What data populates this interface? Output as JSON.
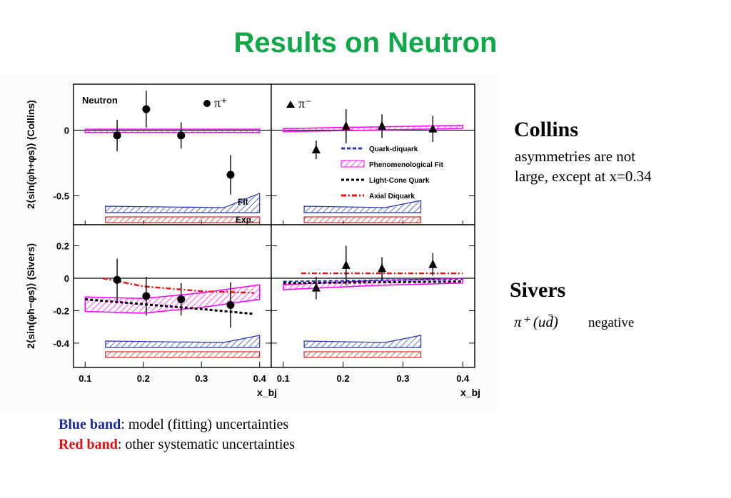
{
  "title": "Results on Neutron",
  "collins_side": {
    "heading": "Collins",
    "lines": [
      "asymmetries are not",
      "large, except at x=0.34"
    ]
  },
  "sivers_side": {
    "heading": "Sivers",
    "formula": "π⁺ (ud̄)",
    "note": "negative"
  },
  "captions": {
    "blue_label": "Blue band",
    "blue_text": ": model (fitting) uncertainties",
    "red_label": "Red band",
    "red_text": ": other systematic uncertainties"
  },
  "chart_data": {
    "type": "scatter",
    "xlabel": "x_bj",
    "xlim": [
      0.08,
      0.42
    ],
    "xticks": [
      "0.1",
      "0.2",
      "0.3",
      "0.4"
    ],
    "rows": [
      {
        "ylabel": "2⟨sin(φh+φs)⟩ (Collins)",
        "ylim": [
          -0.72,
          0.35
        ],
        "yticks": [
          0,
          -0.5
        ],
        "yticklabels": [
          "0",
          "-0.5"
        ]
      },
      {
        "ylabel": "2⟨sin(φh−φs)⟩ (Sivers)",
        "ylim": [
          -0.55,
          0.33
        ],
        "yticks": [
          0.2,
          0,
          -0.2,
          -0.4
        ],
        "yticklabels": [
          "0.2",
          "0",
          "-0.2",
          "-0.4"
        ]
      }
    ],
    "panel_labels": {
      "neutron": "Neutron",
      "pi_plus": "π⁺",
      "pi_minus": "π⁻",
      "fit": "Fit",
      "exp": "Exp."
    },
    "legend": [
      "Quark-diquark",
      "Phenomenological Fit",
      "Light-Cone Quark",
      "Axial Diquark"
    ],
    "colors": {
      "quark_diquark": "#2233cc",
      "phenomenological": "#ff00ff",
      "light_cone": "#000000",
      "axial": "#ee1111",
      "band_blue": "#2233bb",
      "band_red": "#dd2222"
    },
    "panels": [
      {
        "id": "collins-pi-plus",
        "marker": "circle",
        "points": [
          {
            "x": 0.155,
            "y": -0.04,
            "err": 0.12
          },
          {
            "x": 0.205,
            "y": 0.16,
            "err": 0.14
          },
          {
            "x": 0.265,
            "y": -0.04,
            "err": 0.1
          },
          {
            "x": 0.35,
            "y": -0.34,
            "err": 0.15
          }
        ],
        "pheno": {
          "x": [
            0.1,
            0.4
          ],
          "y": [
            -0.005,
            -0.005
          ],
          "half_width": 0.012
        }
      },
      {
        "id": "collins-pi-minus",
        "marker": "triangle",
        "points": [
          {
            "x": 0.155,
            "y": -0.15,
            "err": 0.07
          },
          {
            "x": 0.205,
            "y": 0.03,
            "err": 0.13
          },
          {
            "x": 0.265,
            "y": 0.03,
            "err": 0.09
          },
          {
            "x": 0.35,
            "y": 0.01,
            "err": 0.1
          }
        ],
        "pheno": {
          "x": [
            0.1,
            0.4
          ],
          "y": [
            0.0,
            0.025
          ],
          "half_width": 0.012
        }
      },
      {
        "id": "sivers-pi-plus",
        "marker": "circle",
        "points": [
          {
            "x": 0.155,
            "y": -0.01,
            "err": 0.13
          },
          {
            "x": 0.205,
            "y": -0.11,
            "err": 0.12
          },
          {
            "x": 0.265,
            "y": -0.13,
            "err": 0.1
          },
          {
            "x": 0.35,
            "y": -0.165,
            "err": 0.14
          }
        ],
        "pheno": {
          "x": [
            0.1,
            0.2,
            0.3,
            0.4
          ],
          "y": [
            -0.16,
            -0.17,
            -0.135,
            -0.085
          ],
          "half_width": 0.045
        },
        "light_cone": {
          "x": [
            0.1,
            0.2,
            0.3,
            0.39
          ],
          "y": [
            -0.13,
            -0.16,
            -0.19,
            -0.22
          ]
        },
        "axial": {
          "x": [
            0.13,
            0.2,
            0.3,
            0.39
          ],
          "y": [
            0.0,
            -0.05,
            -0.08,
            -0.09
          ]
        }
      },
      {
        "id": "sivers-pi-minus",
        "marker": "triangle",
        "points": [
          {
            "x": 0.155,
            "y": -0.06,
            "err": 0.07
          },
          {
            "x": 0.205,
            "y": 0.08,
            "err": 0.12
          },
          {
            "x": 0.265,
            "y": 0.06,
            "err": 0.07
          },
          {
            "x": 0.35,
            "y": 0.085,
            "err": 0.07
          }
        ],
        "pheno": {
          "x": [
            0.1,
            0.25,
            0.4
          ],
          "y": [
            -0.055,
            -0.03,
            -0.015
          ],
          "half_width": 0.015
        },
        "light_cone": {
          "x": [
            0.1,
            0.4
          ],
          "y": [
            -0.03,
            -0.02
          ]
        },
        "axial": {
          "x": [
            0.13,
            0.4
          ],
          "y": [
            0.03,
            0.03
          ]
        },
        "quark_diquark": {
          "x": [
            0.1,
            0.4
          ],
          "y": [
            -0.02,
            -0.005
          ]
        }
      }
    ]
  }
}
